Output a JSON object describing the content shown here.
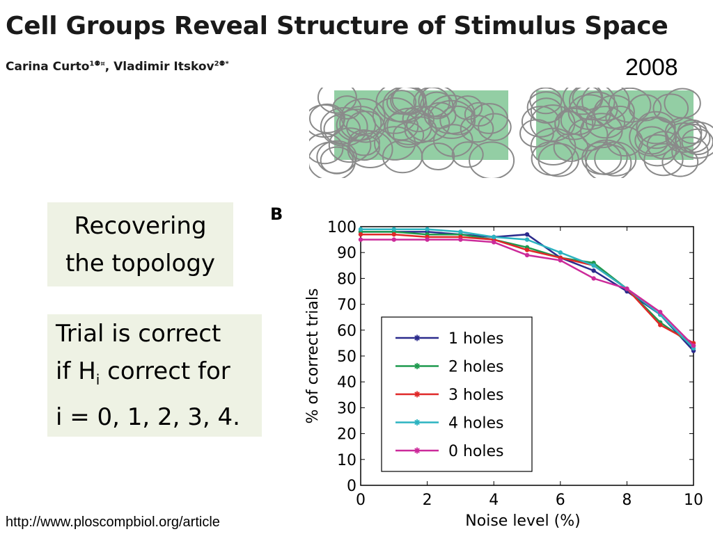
{
  "header": {
    "title": "Cell Groups Reveal Structure of Stimulus Space",
    "author1": "Carina Curto",
    "author1_marks": "1⚉¤",
    "separator": ", ",
    "author2": "Vladimir Itskov",
    "author2_marks": "2⚉*",
    "year": "2008"
  },
  "boxes": {
    "recovering_line1": "Recovering",
    "recovering_line2": "the topology",
    "trial_line1": "Trial is correct",
    "trial_line2_pre": "if H",
    "trial_line2_sub": "i",
    "trial_line2_post": " correct for",
    "trial_line3": "i = 0, 1, 2, 3, 4."
  },
  "panel_label": "B",
  "footer": {
    "url": "http://www.ploscompbiol.org/article"
  },
  "chart_data": {
    "type": "line",
    "xlabel": "Noise level (%)",
    "ylabel": "% of correct trials",
    "xlim": [
      0,
      10
    ],
    "ylim": [
      0,
      100
    ],
    "xticks": [
      "0",
      "2",
      "4",
      "6",
      "8",
      "10"
    ],
    "yticks": [
      "0",
      "10",
      "20",
      "30",
      "40",
      "50",
      "60",
      "70",
      "80",
      "90",
      "100"
    ],
    "x": [
      0,
      1,
      2,
      3,
      4,
      5,
      6,
      7,
      8,
      9,
      10
    ],
    "legend_position": "lower-left",
    "series": [
      {
        "name": "1 holes",
        "color": "#2b2b8c",
        "values": [
          98,
          98,
          98,
          97,
          96,
          97,
          88,
          83,
          75,
          66,
          52
        ]
      },
      {
        "name": "2 holes",
        "color": "#1e9a4e",
        "values": [
          98,
          98,
          97,
          97,
          95,
          92,
          88,
          86,
          76,
          63,
          54
        ]
      },
      {
        "name": "3 holes",
        "color": "#e02828",
        "values": [
          97,
          97,
          96,
          96,
          95,
          91,
          88,
          85,
          76,
          62,
          55
        ]
      },
      {
        "name": "4 holes",
        "color": "#2bb3c0",
        "values": [
          99,
          99,
          99,
          98,
          96,
          95,
          90,
          85,
          76,
          66,
          53
        ]
      },
      {
        "name": "0 holes",
        "color": "#cc2a9a",
        "values": [
          95,
          95,
          95,
          95,
          94,
          89,
          87,
          80,
          76,
          67,
          54
        ]
      }
    ]
  }
}
